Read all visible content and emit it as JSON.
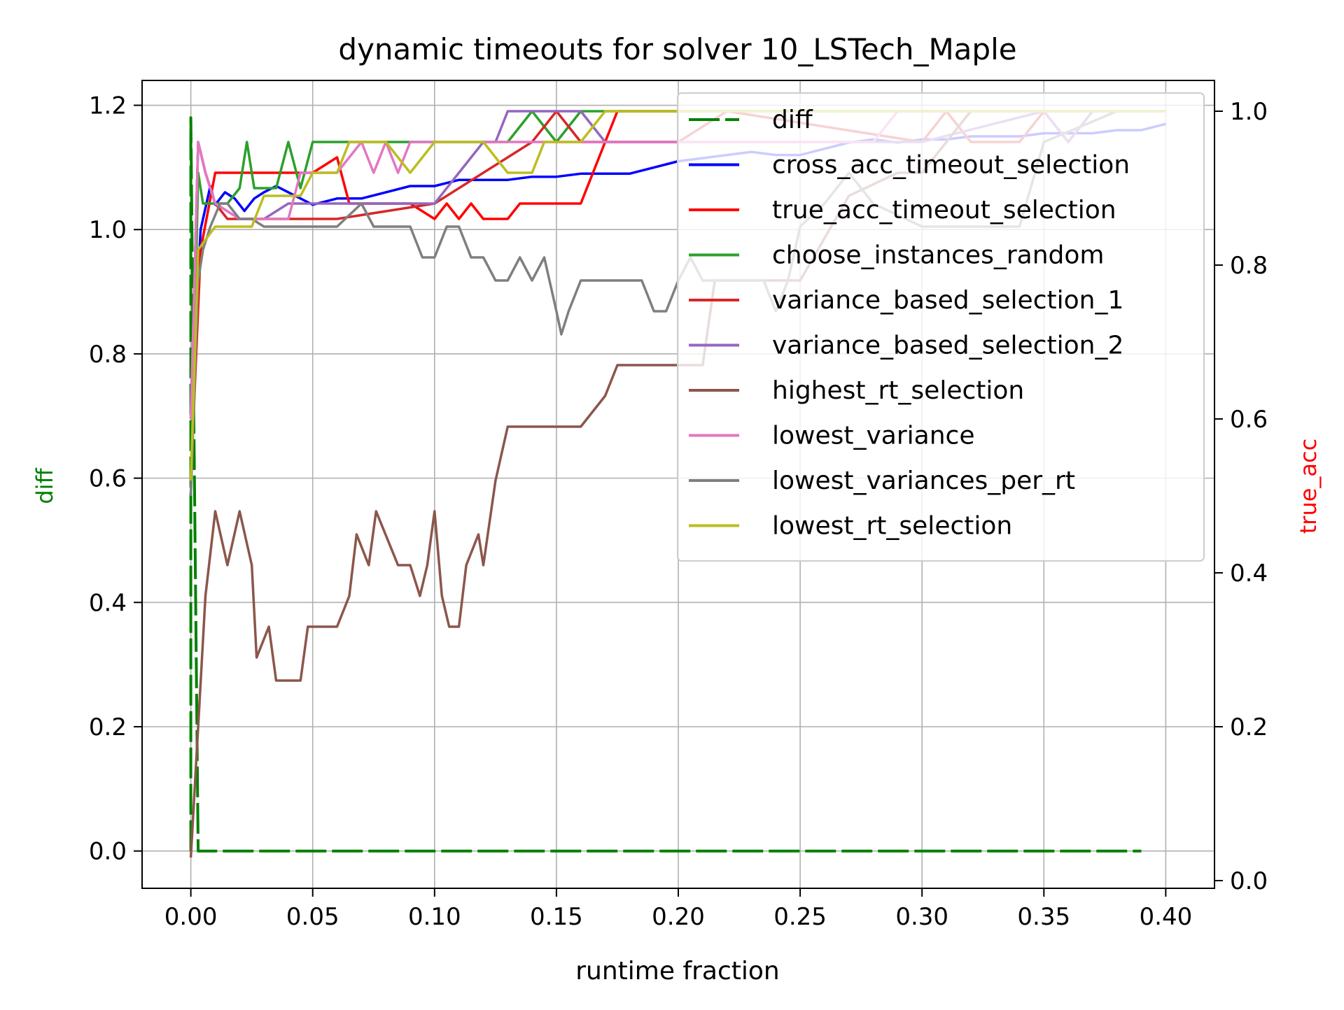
{
  "chart_data": {
    "type": "line",
    "title": "dynamic timeouts for solver 10_LSTech_Maple",
    "xlabel": "runtime fraction",
    "ylabel_left": "diff",
    "ylabel_right": "true_acc",
    "xlim": [
      -0.02,
      0.42
    ],
    "ylim_left": [
      -0.06,
      1.24
    ],
    "ylim_right": [
      -0.01,
      1.04
    ],
    "xticks": [
      "0.00",
      "0.05",
      "0.10",
      "0.15",
      "0.20",
      "0.25",
      "0.30",
      "0.35",
      "0.40"
    ],
    "yticks_left": [
      "0.0",
      "0.2",
      "0.4",
      "0.6",
      "0.8",
      "1.0",
      "1.2"
    ],
    "yticks_right": [
      "0.0",
      "0.2",
      "0.4",
      "0.6",
      "0.8",
      "1.0"
    ],
    "grid": true,
    "legend_position": "top-right",
    "colors": {
      "diff": "#008000",
      "cross": "#0000ff",
      "true": "#ff0000",
      "random": "#2ca02c",
      "var1": "#d62728",
      "var2": "#9467bd",
      "highest": "#8c564b",
      "lowvar": "#e377c2",
      "lowvarrt": "#7f7f7f",
      "lowrt": "#bcbd22",
      "right_label": "#ff0000"
    },
    "series": [
      {
        "name": "diff",
        "axis": "left",
        "color": "#008000",
        "dashed": true,
        "x": [
          0.0,
          0.0,
          0.003,
          0.39
        ],
        "y": [
          0.0,
          1.18,
          0.0,
          0.0
        ]
      },
      {
        "name": "cross_acc_timeout_selection",
        "axis": "left",
        "color": "#0000ff",
        "x": [
          0.0,
          0.004,
          0.008,
          0.01,
          0.014,
          0.018,
          0.022,
          0.026,
          0.03,
          0.035,
          0.04,
          0.045,
          0.05,
          0.06,
          0.07,
          0.08,
          0.09,
          0.1,
          0.11,
          0.12,
          0.13,
          0.14,
          0.15,
          0.16,
          0.17,
          0.18,
          0.19,
          0.2,
          0.21,
          0.22,
          0.23,
          0.24,
          0.25,
          0.26,
          0.27,
          0.28,
          0.29,
          0.3,
          0.31,
          0.32,
          0.33,
          0.34,
          0.35,
          0.36,
          0.37,
          0.38,
          0.39,
          0.4
        ],
        "y": [
          0.7,
          1.0,
          1.07,
          1.04,
          1.06,
          1.05,
          1.03,
          1.05,
          1.06,
          1.07,
          1.06,
          1.05,
          1.04,
          1.05,
          1.05,
          1.06,
          1.07,
          1.07,
          1.08,
          1.08,
          1.08,
          1.085,
          1.085,
          1.09,
          1.09,
          1.09,
          1.1,
          1.11,
          1.115,
          1.12,
          1.125,
          1.12,
          1.12,
          1.13,
          1.14,
          1.145,
          1.14,
          1.145,
          1.145,
          1.15,
          1.15,
          1.15,
          1.155,
          1.155,
          1.155,
          1.16,
          1.16,
          1.17
        ]
      },
      {
        "name": "true_acc_timeout_selection",
        "axis": "right",
        "color": "#ff0000",
        "x": [
          0.0,
          0.004,
          0.01,
          0.02,
          0.05,
          0.06,
          0.065,
          0.08,
          0.09,
          0.1,
          0.105,
          0.11,
          0.115,
          0.12,
          0.13,
          0.135,
          0.14,
          0.16,
          0.17,
          0.175,
          0.39,
          0.4
        ],
        "y": [
          0.52,
          0.82,
          0.92,
          0.92,
          0.92,
          0.94,
          0.88,
          0.88,
          0.88,
          0.86,
          0.88,
          0.86,
          0.88,
          0.86,
          0.86,
          0.88,
          0.88,
          0.88,
          0.96,
          1.0,
          1.0,
          1.0
        ]
      },
      {
        "name": "choose_instances_random",
        "axis": "right",
        "color": "#2ca02c",
        "x": [
          0.0,
          0.003,
          0.005,
          0.01,
          0.015,
          0.02,
          0.023,
          0.026,
          0.03,
          0.035,
          0.04,
          0.045,
          0.05,
          0.06,
          0.07,
          0.09,
          0.1,
          0.11,
          0.12,
          0.13,
          0.14,
          0.15,
          0.16,
          0.17,
          0.39,
          0.4
        ],
        "y": [
          0.5,
          0.92,
          0.88,
          0.88,
          0.88,
          0.9,
          0.96,
          0.9,
          0.9,
          0.9,
          0.96,
          0.9,
          0.96,
          0.96,
          0.96,
          0.96,
          0.96,
          0.96,
          0.96,
          0.96,
          1.0,
          0.96,
          1.0,
          1.0,
          1.0,
          1.0
        ]
      },
      {
        "name": "variance_based_selection_1",
        "axis": "right",
        "color": "#d62728",
        "x": [
          0.0,
          0.003,
          0.006,
          0.01,
          0.015,
          0.02,
          0.03,
          0.06,
          0.1,
          0.14,
          0.15,
          0.16,
          0.2,
          0.22,
          0.3,
          0.31,
          0.32,
          0.34,
          0.35,
          0.36,
          0.37,
          0.38,
          0.4
        ],
        "y": [
          0.6,
          0.96,
          0.92,
          0.88,
          0.86,
          0.86,
          0.86,
          0.86,
          0.88,
          0.96,
          1.0,
          0.96,
          0.96,
          1.0,
          0.96,
          1.0,
          0.96,
          0.96,
          1.0,
          0.96,
          1.0,
          1.0,
          1.0
        ]
      },
      {
        "name": "variance_based_selection_2",
        "axis": "right",
        "color": "#9467bd",
        "x": [
          0.0,
          0.003,
          0.006,
          0.01,
          0.02,
          0.03,
          0.04,
          0.05,
          0.08,
          0.1,
          0.11,
          0.12,
          0.125,
          0.13,
          0.16,
          0.17,
          0.2,
          0.22,
          0.3,
          0.35,
          0.36,
          0.37,
          0.38,
          0.4
        ],
        "y": [
          0.6,
          0.96,
          0.92,
          0.88,
          0.86,
          0.86,
          0.88,
          0.88,
          0.88,
          0.88,
          0.92,
          0.96,
          0.96,
          1.0,
          1.0,
          0.96,
          0.96,
          0.96,
          0.96,
          1.0,
          0.96,
          1.0,
          1.0,
          1.0
        ]
      },
      {
        "name": "highest_rt_selection",
        "axis": "right",
        "color": "#8c564b",
        "x": [
          0.0,
          0.003,
          0.006,
          0.01,
          0.015,
          0.02,
          0.025,
          0.027,
          0.032,
          0.035,
          0.04,
          0.045,
          0.048,
          0.055,
          0.06,
          0.065,
          0.068,
          0.073,
          0.076,
          0.085,
          0.09,
          0.094,
          0.097,
          0.1,
          0.103,
          0.106,
          0.11,
          0.113,
          0.118,
          0.12,
          0.125,
          0.13,
          0.14,
          0.16,
          0.17,
          0.175,
          0.2,
          0.21,
          0.215,
          0.23,
          0.25,
          0.27,
          0.29,
          0.3,
          0.32,
          0.34,
          0.36,
          0.38,
          0.4
        ],
        "y": [
          0.03,
          0.2,
          0.37,
          0.48,
          0.41,
          0.48,
          0.41,
          0.29,
          0.33,
          0.26,
          0.26,
          0.26,
          0.33,
          0.33,
          0.33,
          0.37,
          0.45,
          0.41,
          0.48,
          0.41,
          0.41,
          0.37,
          0.41,
          0.48,
          0.37,
          0.33,
          0.33,
          0.41,
          0.45,
          0.41,
          0.52,
          0.59,
          0.59,
          0.59,
          0.63,
          0.67,
          0.67,
          0.67,
          0.78,
          0.78,
          0.78,
          0.89,
          0.92,
          0.92,
          1.0,
          1.0,
          1.0,
          1.0,
          1.0
        ]
      },
      {
        "name": "lowest_variance",
        "axis": "right",
        "color": "#e377c2",
        "x": [
          0.0,
          0.003,
          0.006,
          0.01,
          0.02,
          0.03,
          0.04,
          0.045,
          0.05,
          0.06,
          0.07,
          0.075,
          0.08,
          0.085,
          0.09,
          0.1,
          0.11,
          0.28,
          0.29,
          0.4
        ],
        "y": [
          0.6,
          0.96,
          0.92,
          0.88,
          0.86,
          0.86,
          0.86,
          0.92,
          0.92,
          0.92,
          0.96,
          0.92,
          0.96,
          0.92,
          0.96,
          0.96,
          0.96,
          0.96,
          1.0,
          1.0
        ]
      },
      {
        "name": "lowest_variances_per_rt",
        "axis": "right",
        "color": "#7f7f7f",
        "x": [
          0.0,
          0.003,
          0.005,
          0.008,
          0.012,
          0.015,
          0.02,
          0.025,
          0.03,
          0.06,
          0.07,
          0.075,
          0.08,
          0.09,
          0.095,
          0.1,
          0.105,
          0.11,
          0.115,
          0.12,
          0.125,
          0.13,
          0.135,
          0.14,
          0.145,
          0.15,
          0.152,
          0.155,
          0.16,
          0.17,
          0.185,
          0.19,
          0.195,
          0.2,
          0.205,
          0.21,
          0.22,
          0.235,
          0.24,
          0.245,
          0.25,
          0.26,
          0.27,
          0.28,
          0.3,
          0.34,
          0.35,
          0.38,
          0.4
        ],
        "y": [
          0.5,
          0.78,
          0.82,
          0.85,
          0.88,
          0.88,
          0.86,
          0.86,
          0.85,
          0.85,
          0.88,
          0.85,
          0.85,
          0.85,
          0.81,
          0.81,
          0.85,
          0.85,
          0.81,
          0.81,
          0.78,
          0.78,
          0.81,
          0.78,
          0.81,
          0.74,
          0.71,
          0.74,
          0.78,
          0.78,
          0.78,
          0.74,
          0.74,
          0.78,
          0.81,
          0.78,
          0.78,
          0.78,
          0.74,
          0.78,
          0.85,
          0.88,
          0.92,
          0.88,
          0.85,
          0.85,
          0.96,
          1.0,
          1.0
        ]
      },
      {
        "name": "lowest_rt_selection",
        "axis": "right",
        "color": "#bcbd22",
        "x": [
          0.0,
          0.003,
          0.01,
          0.02,
          0.025,
          0.03,
          0.04,
          0.045,
          0.05,
          0.06,
          0.065,
          0.07,
          0.08,
          0.09,
          0.1,
          0.12,
          0.13,
          0.14,
          0.145,
          0.15,
          0.16,
          0.17,
          0.18,
          0.4
        ],
        "y": [
          0.52,
          0.82,
          0.85,
          0.85,
          0.85,
          0.89,
          0.89,
          0.89,
          0.92,
          0.92,
          0.96,
          0.96,
          0.96,
          0.92,
          0.96,
          0.96,
          0.92,
          0.92,
          0.96,
          0.96,
          0.96,
          1.0,
          1.0,
          1.0
        ]
      }
    ]
  }
}
